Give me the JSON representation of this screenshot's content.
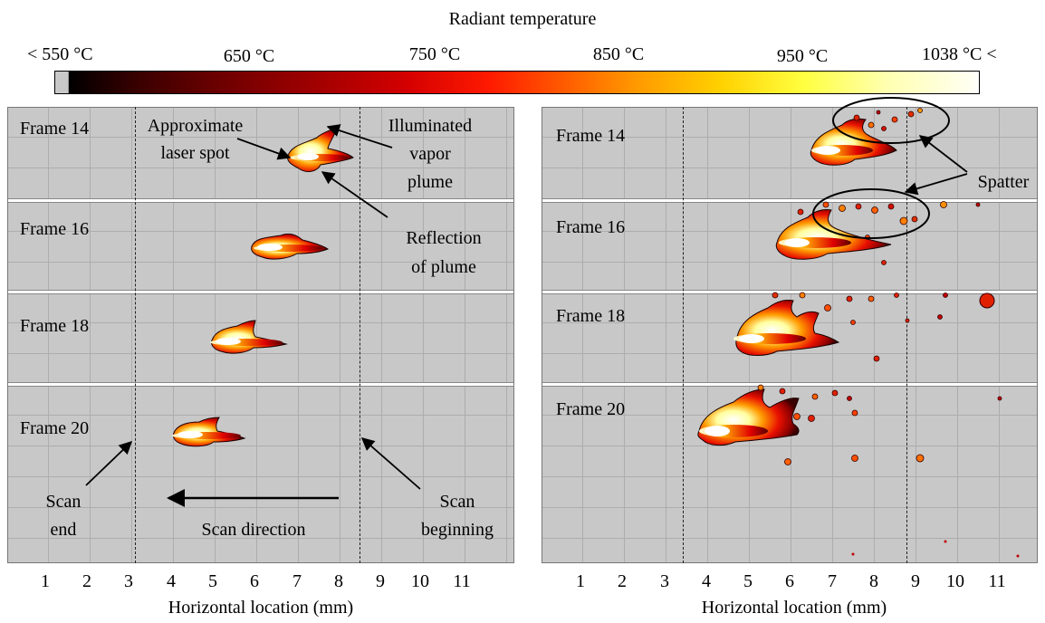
{
  "colorbar": {
    "title": "Radiant temperature",
    "ticks": [
      "< 550 °C",
      "650 °C",
      "750 °C",
      "850 °C",
      "950 °C",
      "1038 °C <"
    ]
  },
  "left_panel": {
    "frames": [
      "Frame 14",
      "Frame 16",
      "Frame 18",
      "Frame 20"
    ],
    "annotations": {
      "approx_laser": "Approximate",
      "approx_laser2": "laser spot",
      "illum1": "Illuminated",
      "illum2": "vapor",
      "illum3": "plume",
      "refl1": "Reflection",
      "refl2": "of plume",
      "scan_end1": "Scan",
      "scan_end2": "end",
      "scan_dir": "Scan direction",
      "scan_begin1": "Scan",
      "scan_begin2": "beginning"
    },
    "x_ticks": [
      "1",
      "2",
      "3",
      "4",
      "5",
      "6",
      "7",
      "8",
      "9",
      "10",
      "11"
    ],
    "xlabel": "Horizontal location (mm)"
  },
  "right_panel": {
    "frames": [
      "Frame 14",
      "Frame 16",
      "Frame 18",
      "Frame 20"
    ],
    "annotations": {
      "spatter": "Spatter"
    },
    "x_ticks": [
      "1",
      "2",
      "3",
      "4",
      "5",
      "6",
      "7",
      "8",
      "9",
      "10",
      "11"
    ],
    "xlabel": "Horizontal location (mm)"
  },
  "colors": {
    "background": "#c8c8c8",
    "hot": "#ffffff",
    "mid": "#ff3a00",
    "cool": "#6e0000"
  }
}
